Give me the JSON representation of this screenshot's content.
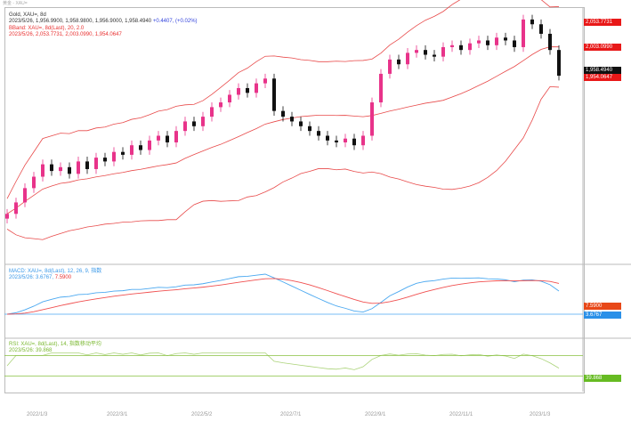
{
  "window": {
    "title": "黄金 - XAU="
  },
  "legend": {
    "main_title": "Gold, XAU=, 8d",
    "main_values": "2023/5/26, 1,956.9900, 1,958.9800, 1,956.9000, 1,958.4940",
    "main_change": "+0.4407, (+0.02%)",
    "bb_title": "BBand: XAU=, 8d(Last), 20, 2.0",
    "bb_values": "2023/5/26, 2,053.7731, 2,003.0990, 1,954.0647",
    "macd_title": "MACD: XAU=, 8d(Last), 12, 26, 9, 指数",
    "macd_values": "2023/5/26: 3.6767, ",
    "macd_signal_value": "7.5900",
    "rsi_title": "RSI: XAU=, 8d(Last), 14, 指数移动平均",
    "rsi_values": "2023/5/26: 39.868"
  },
  "axis_tags": {
    "bb_upper": "2,053.7731",
    "bb_mid": "2,003.0990",
    "last": "1,958.4940",
    "bb_lower": "1,954.0647",
    "macd_signal": "7.5900",
    "macd": "3.6767",
    "rsi": "39.868"
  },
  "dates": [
    "2022/1/3",
    "2022/3/1",
    "2022/5/2",
    "2022/7/1",
    "2022/9/1",
    "2022/11/1",
    "2023/1/3"
  ],
  "colors": {
    "up": "#e8338a",
    "down": "#111111",
    "band": "#e84a4a",
    "macd": "#4aa8f0",
    "signal": "#f05050",
    "rsi": "#88c040",
    "tag_red": "#e81818",
    "tag_blue": "#2a90e8",
    "tag_green": "#66bb22"
  },
  "chart_data": {
    "type": "candlestick",
    "ylim": [
      1760,
      2030
    ],
    "closes": [
      1813,
      1825,
      1840,
      1852,
      1865,
      1858,
      1862,
      1855,
      1868,
      1860,
      1872,
      1868,
      1878,
      1875,
      1885,
      1880,
      1890,
      1895,
      1888,
      1900,
      1910,
      1905,
      1915,
      1925,
      1930,
      1938,
      1945,
      1940,
      1950,
      1955,
      1921,
      1915,
      1910,
      1905,
      1900,
      1895,
      1890,
      1888,
      1892,
      1885,
      1895,
      1930,
      1960,
      1975,
      1970,
      1982,
      1985,
      1980,
      1978,
      1988,
      1990,
      1985,
      1992,
      1995,
      1990,
      1998,
      1995,
      1988,
      2017,
      2012,
      2002,
      1985,
      1958
    ],
    "indicators": [
      "Bollinger 20,2",
      "MACD 12,26,9",
      "RSI 14"
    ],
    "rsi_levels": [
      70,
      30
    ]
  }
}
